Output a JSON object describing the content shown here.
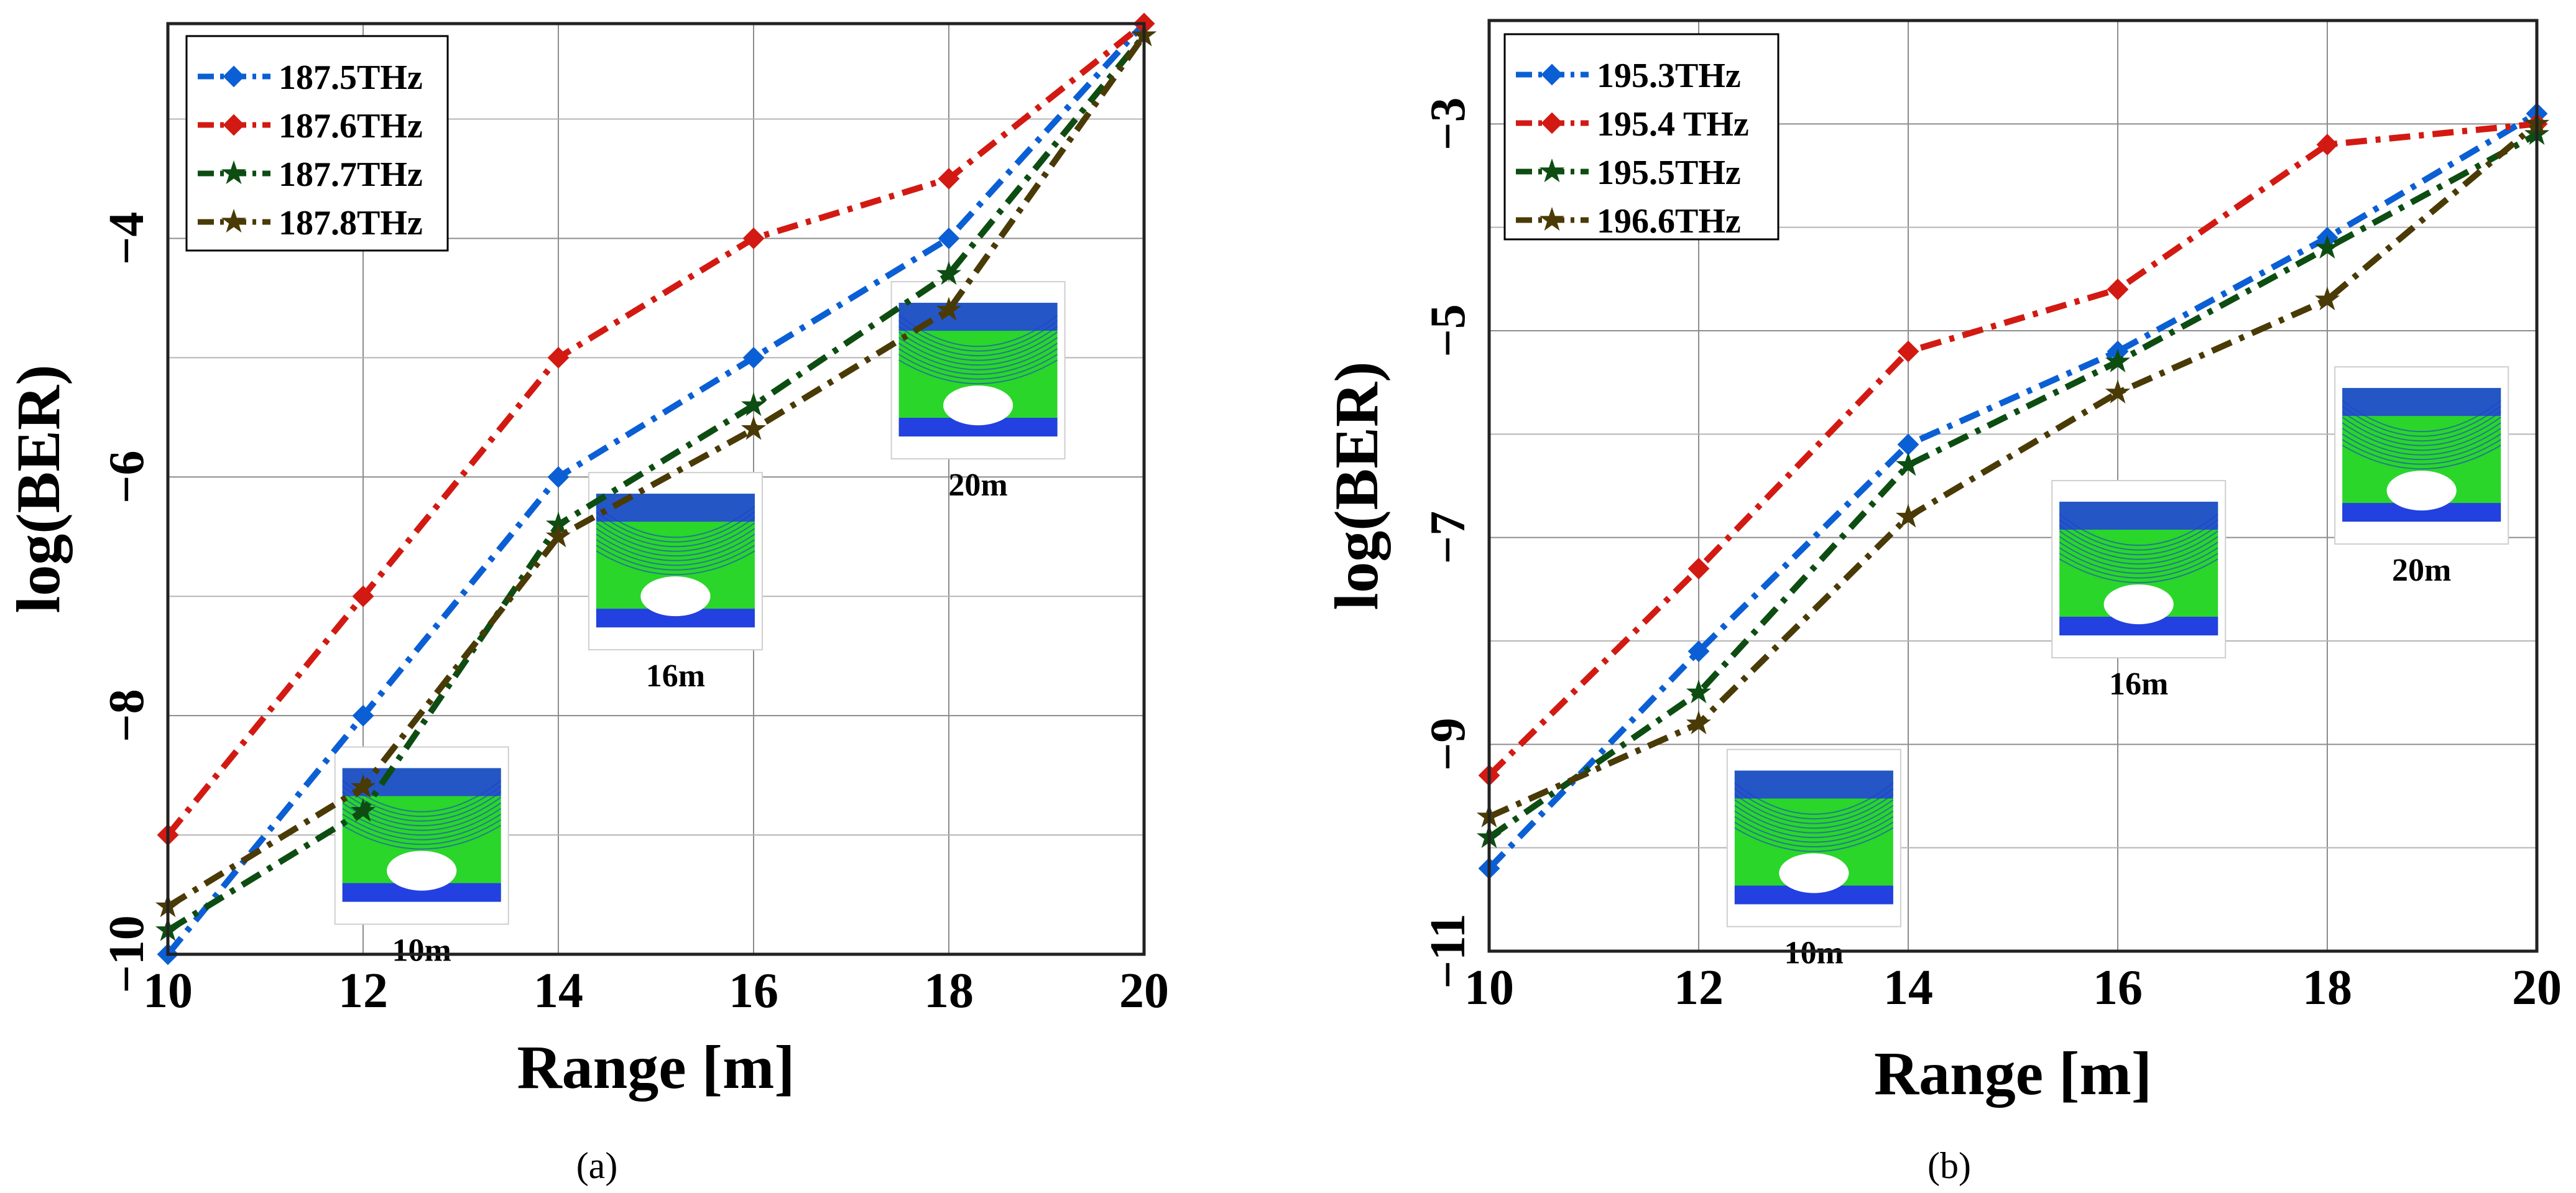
{
  "chart_data": [
    {
      "type": "line",
      "panel": "(a)",
      "xlabel": "Range [m]",
      "ylabel": "log(BER)",
      "xlim": [
        10,
        20
      ],
      "ylim": [
        -10,
        -2.2
      ],
      "xticks": [
        10,
        12,
        14,
        16,
        18,
        20
      ],
      "yticks": [
        -10,
        -8,
        -6,
        -4
      ],
      "grid": true,
      "legend_position": "top-left",
      "x": [
        10,
        12,
        14,
        16,
        18,
        20
      ],
      "series": [
        {
          "name": "187.5THz",
          "color": "#0b5fd4",
          "marker": "diamond",
          "values": [
            -10,
            -8,
            -6,
            -5,
            -4,
            -2.2
          ]
        },
        {
          "name": "187.6THz",
          "color": "#d21a12",
          "marker": "diamond",
          "values": [
            -9,
            -7,
            -5,
            -4,
            -3.5,
            -2.2
          ]
        },
        {
          "name": "187.7THz",
          "color": "#0d4d12",
          "marker": "star",
          "values": [
            -9.8,
            -8.8,
            -6.4,
            -5.4,
            -4.3,
            -2.3
          ]
        },
        {
          "name": "187.8THz",
          "color": "#4a3a06",
          "marker": "star",
          "values": [
            -9.6,
            -8.6,
            -6.5,
            -5.6,
            -4.6,
            -2.3
          ]
        }
      ],
      "insets": [
        {
          "label": "10m",
          "x": 12.6,
          "y": -9.0
        },
        {
          "label": "16m",
          "x": 15.2,
          "y": -6.7
        },
        {
          "label": "20m",
          "x": 18.3,
          "y": -5.1
        }
      ]
    },
    {
      "type": "line",
      "panel": "(b)",
      "xlabel": "Range [m]",
      "ylabel": "log(BER)",
      "xlim": [
        10,
        20
      ],
      "ylim": [
        -11,
        -2
      ],
      "xticks": [
        10,
        12,
        14,
        16,
        18,
        20
      ],
      "yticks": [
        -11,
        -9,
        -7,
        -5,
        -3
      ],
      "grid": true,
      "legend_position": "top-left",
      "x": [
        10,
        12,
        14,
        16,
        18,
        20
      ],
      "series": [
        {
          "name": "195.3THz",
          "color": "#0b5fd4",
          "marker": "diamond",
          "values": [
            -10.2,
            -8.1,
            -6.1,
            -5.2,
            -4.1,
            -2.9
          ]
        },
        {
          "name": "195.4 THz",
          "color": "#d21a12",
          "marker": "diamond",
          "values": [
            -9.3,
            -7.3,
            -5.2,
            -4.6,
            -3.2,
            -3.0
          ]
        },
        {
          "name": "195.5THz",
          "color": "#0d4d12",
          "marker": "star",
          "values": [
            -9.9,
            -8.5,
            -6.3,
            -5.3,
            -4.2,
            -3.1
          ]
        },
        {
          "name": "196.6THz",
          "color": "#4a3a06",
          "marker": "star",
          "values": [
            -9.7,
            -8.8,
            -6.8,
            -5.6,
            -4.7,
            -3.0
          ]
        }
      ],
      "insets": [
        {
          "label": "10m",
          "x": 13.1,
          "y": -9.9
        },
        {
          "label": "16m",
          "x": 16.2,
          "y": -7.3
        },
        {
          "label": "20m",
          "x": 18.9,
          "y": -6.2
        }
      ]
    }
  ],
  "captions": [
    "(a)",
    "(b)"
  ]
}
